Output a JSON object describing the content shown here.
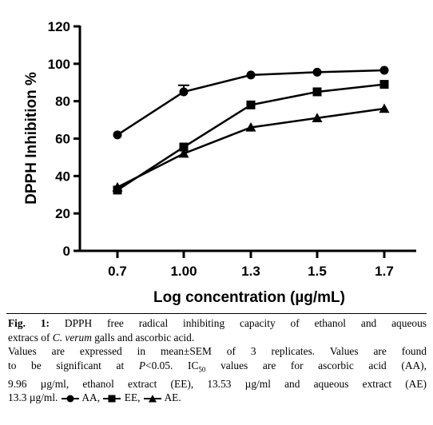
{
  "chart_data": {
    "type": "line",
    "title": "",
    "xlabel": "Log concentration (µg/mL)",
    "ylabel": "DPPH Inhibition %",
    "categories": [
      "0.7",
      "1.00",
      "1.3",
      "1.5",
      "1.7"
    ],
    "ylim": [
      0,
      120
    ],
    "yticks": [
      "0",
      "20",
      "40",
      "60",
      "80",
      "100",
      "120"
    ],
    "grid": false,
    "legend": "caption",
    "series": [
      {
        "name": "AA",
        "marker": "circle",
        "values": [
          62,
          85,
          94,
          95.5,
          96.5
        ],
        "errors": [
          0,
          3.5,
          0,
          0,
          0
        ]
      },
      {
        "name": "EE",
        "marker": "square",
        "values": [
          32.5,
          55.5,
          78,
          85,
          89
        ],
        "errors": [
          0,
          0,
          0,
          0,
          0
        ]
      },
      {
        "name": "AE",
        "marker": "triangle",
        "values": [
          34,
          52,
          66,
          71,
          76
        ],
        "errors": [
          0,
          0,
          0,
          0,
          0
        ]
      }
    ]
  },
  "caption": {
    "fig_label": "Fig. 1:",
    "line1": "DPPH free radical inhibiting capacity of ethanol and aqueous",
    "line2_a": "extracs of",
    "line2_species": "C. verum",
    "line2_b": "galls and ascorbic acid.",
    "line3": "Values are expressed in mean±SEM of 3 replicates. Values are found",
    "line4_a": "to be significant at",
    "line4_p": "P",
    "line4_b": "<0.05. IC",
    "line4_sub": "50",
    "line4_c": "values are for ascorbic acid (AA),",
    "line5": "9.96 µg/ml, ethanol extract (EE), 13.53 µg/ml and aqueous extract (AE)",
    "line6_a": "13.3 µg/ml.",
    "legend_aa": "AA,",
    "legend_ee": "EE,",
    "legend_ae": "AE."
  }
}
